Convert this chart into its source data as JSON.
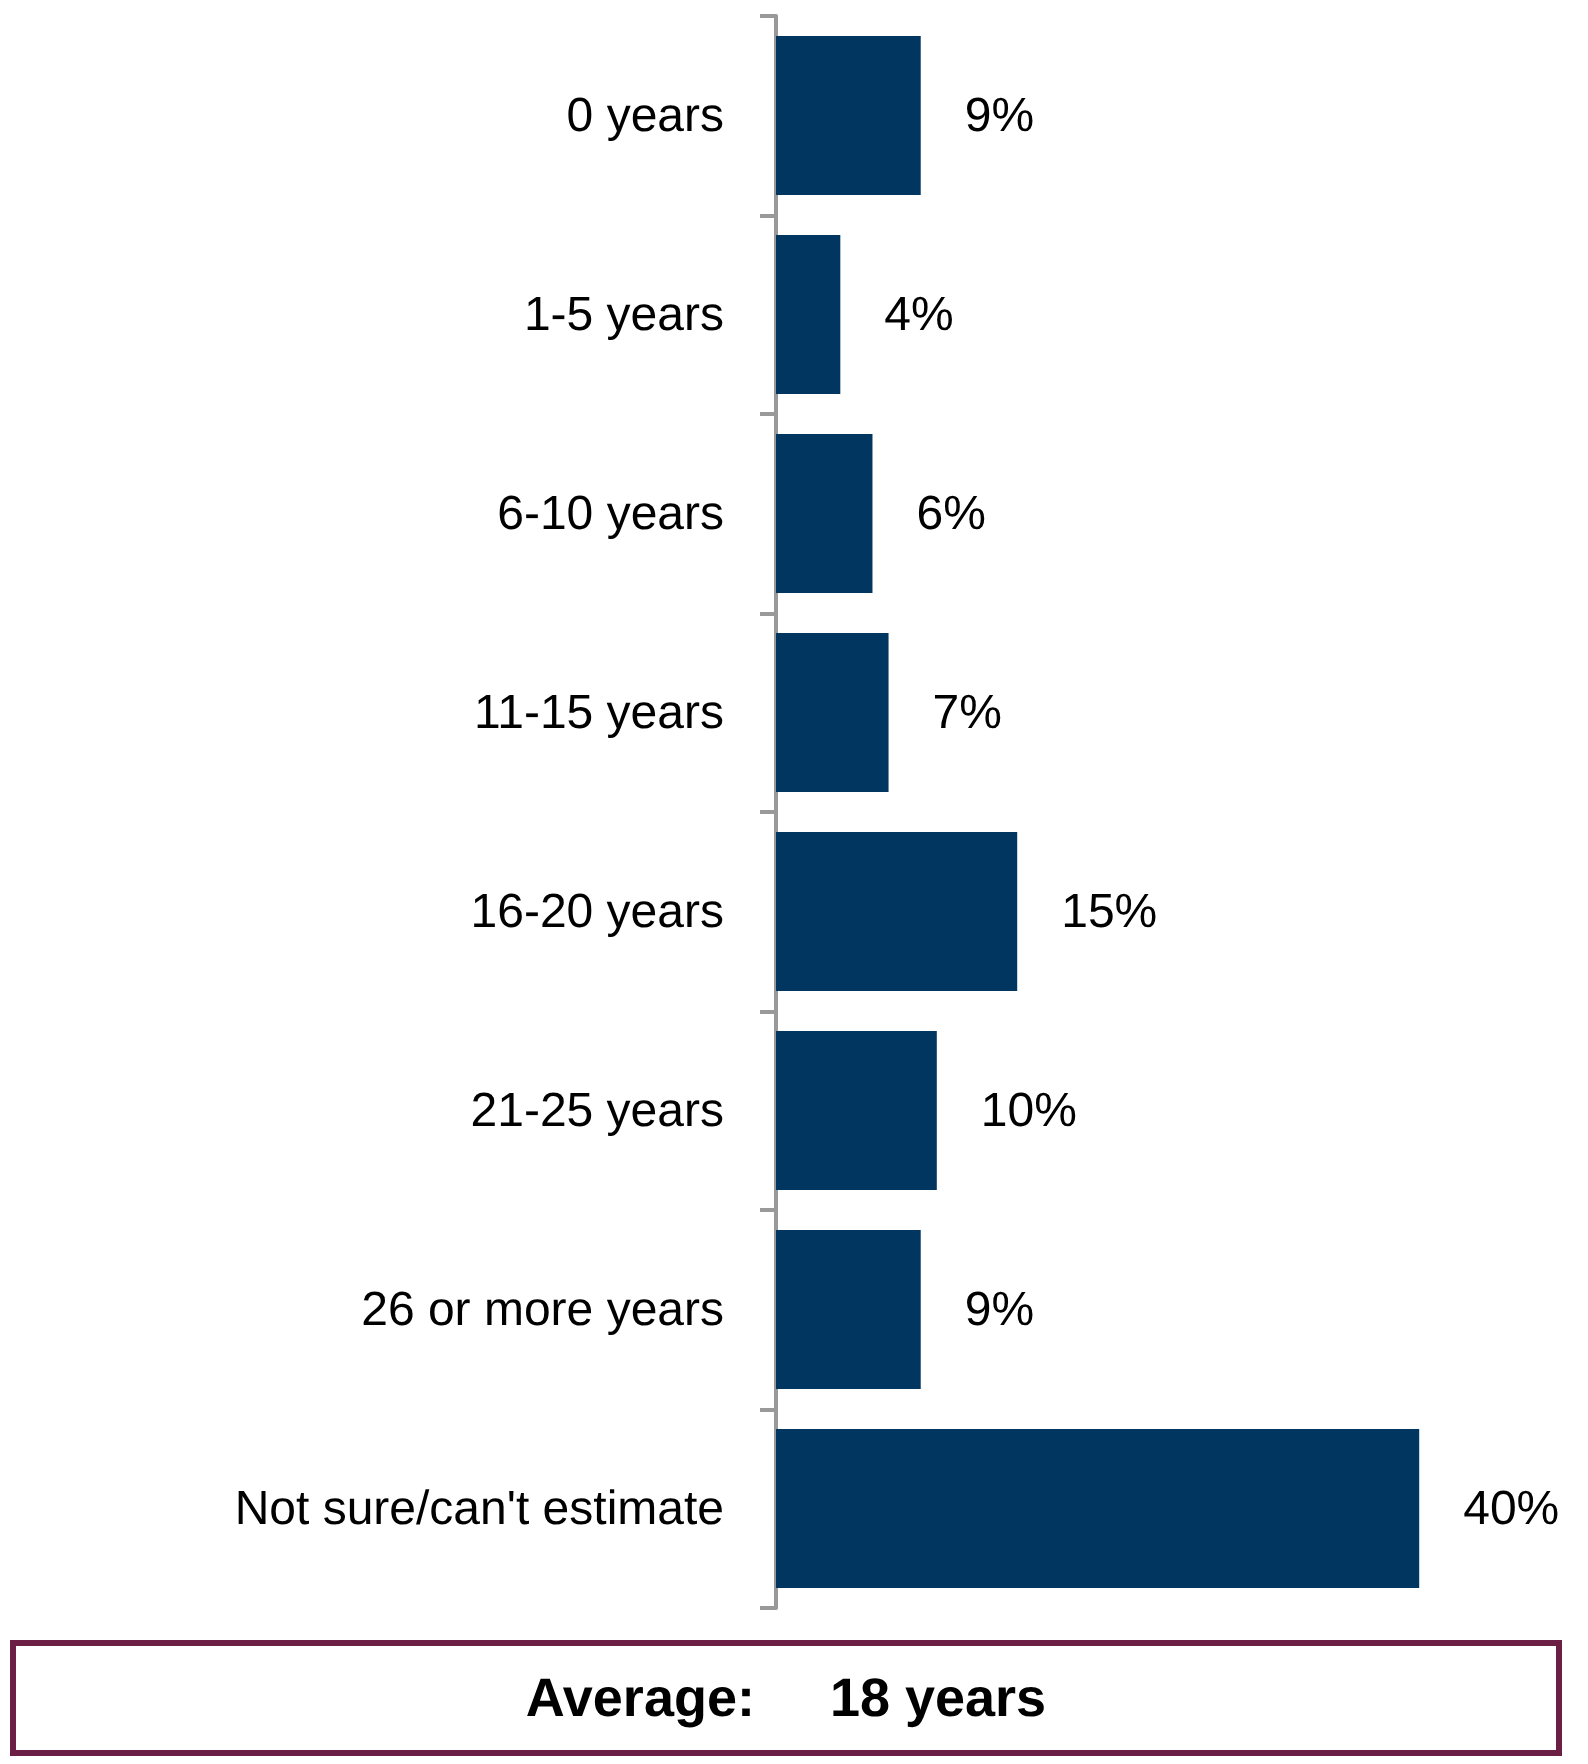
{
  "chart_data": {
    "type": "bar",
    "orientation": "horizontal",
    "categories": [
      "0 years",
      "1-5 years",
      "6-10 years",
      "11-15 years",
      "16-20 years",
      "21-25 years",
      "26 or more years",
      "Not sure/can't estimate"
    ],
    "values": [
      9,
      4,
      6,
      7,
      15,
      10,
      9,
      40
    ],
    "value_labels": [
      "9%",
      "4%",
      "6%",
      "7%",
      "15%",
      "10%",
      "9%",
      "40%"
    ],
    "color": "#003660",
    "annotations": [
      "Average:     18 years"
    ]
  }
}
